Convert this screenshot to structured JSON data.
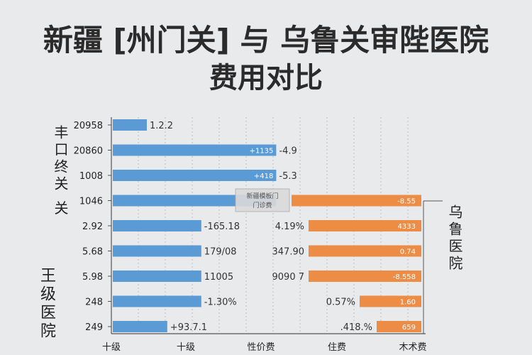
{
  "title_line1": "新疆 [州门关] 与 乌鲁关审陛医院",
  "title_line2": "费用对比",
  "left_side_label": "丰口终关 关",
  "left_bottom_label": "王级医院",
  "right_side_label": "乌鲁医院",
  "legend_box": {
    "line1": "新疆模板门",
    "line2": "门诊费"
  },
  "colors": {
    "left_series": "#5b9bd5",
    "right_series": "#ed8c45",
    "grid": "#b5b5b5",
    "axis": "#555555"
  },
  "chart_data": {
    "type": "bar",
    "orientation": "horizontal",
    "row_labels": [
      "20958",
      "20860",
      "1008",
      "1046",
      "2.92",
      "5.68",
      "5.98",
      "248",
      "249"
    ],
    "series": [
      {
        "key": "left",
        "values": [
          1.5,
          7.2,
          7.2,
          7.2,
          3.9,
          3.9,
          3.9,
          3.9,
          2.4
        ],
        "inner_labels": [
          "",
          "+1135",
          "+418",
          "",
          "",
          "",
          "",
          "",
          ""
        ],
        "outer_labels": [
          "1.2.2",
          "-4.9",
          "-5.3",
          "",
          "-165.18",
          "179/08",
          "11005",
          "-1.30%",
          "+93.7.1"
        ]
      },
      {
        "key": "right",
        "values": [
          0,
          0,
          0,
          6.1,
          5.3,
          5.3,
          5.3,
          2.9,
          2.1
        ],
        "inner_labels": [
          "",
          "",
          "",
          "-8.55",
          "4333",
          "0.74",
          "-8.558",
          "1.60",
          "659"
        ],
        "outer_labels": [
          "",
          "",
          "",
          "",
          "4.19%",
          "347.90",
          "9090 7",
          "0.57%",
          ".418.%"
        ]
      }
    ],
    "x_tick_labels": [
      "十级",
      "十级",
      "性价费",
      "住费",
      "木术费"
    ],
    "grid": true
  }
}
